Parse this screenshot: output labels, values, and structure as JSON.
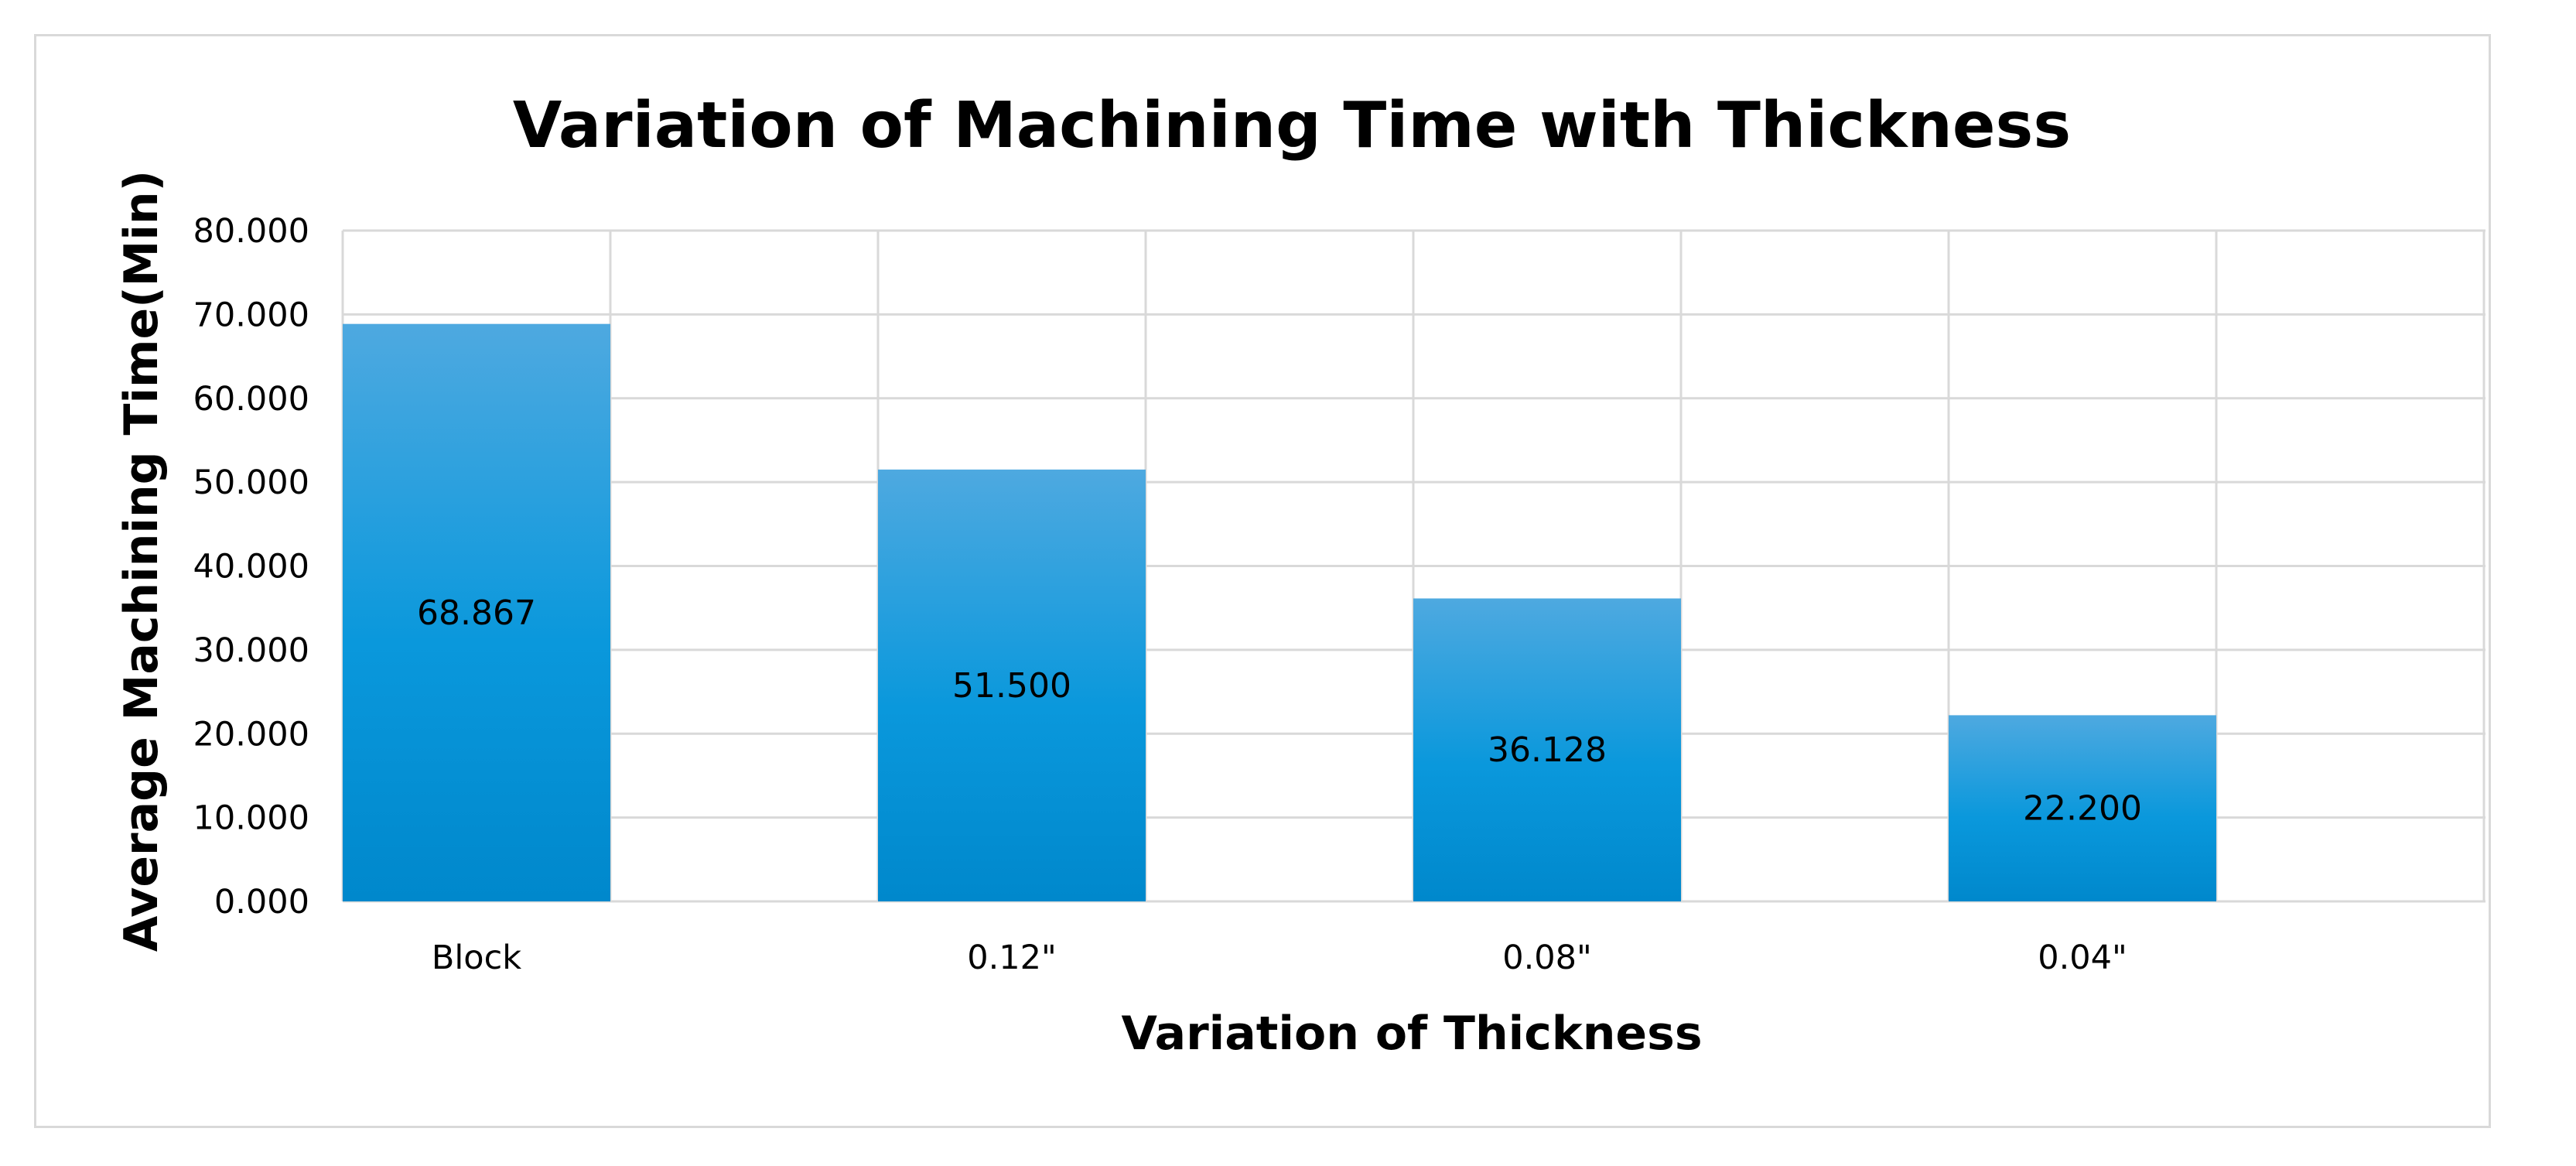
{
  "chart_data": {
    "type": "bar",
    "title": "Variation of Machining Time with Thickness",
    "xlabel": "Variation of Thickness",
    "ylabel": "Average Machining Time(Min)",
    "categories": [
      "Block",
      "0.12\"",
      "0.08\"",
      "0.04\""
    ],
    "values": [
      68.867,
      51.5,
      36.128,
      22.2
    ],
    "data_labels": [
      "68.867",
      "51.500",
      "36.128",
      "22.200"
    ],
    "ylim": [
      0,
      80
    ],
    "yticks": [
      "0.000",
      "10.000",
      "20.000",
      "30.000",
      "40.000",
      "50.000",
      "60.000",
      "70.000",
      "80.000"
    ],
    "grid": true,
    "legend": "none",
    "colors": {
      "bar_top": "#4ea9e0",
      "bar_mid": "#0a98dc",
      "bar_bottom": "#0088cc",
      "grid": "#d9d9d9"
    }
  }
}
